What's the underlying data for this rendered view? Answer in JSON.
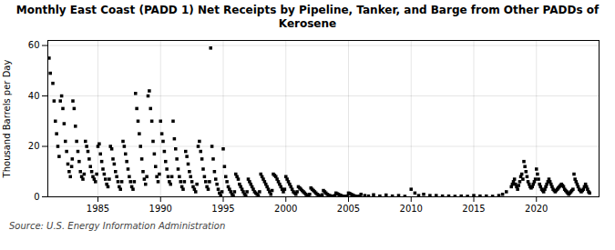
{
  "chart_data": {
    "type": "scatter",
    "title": "Monthly East Coast (PADD 1) Net Receipts by Pipeline, Tanker, and Barge from Other PADDs of\nKerosene",
    "ylabel": "Thousand Barrels per Day",
    "source": "Source: U.S. Energy Information Administration",
    "marker": "square",
    "grid": true,
    "xlim": [
      1981.0,
      2025.0
    ],
    "ylim": [
      0,
      62
    ],
    "xticks": [
      1985,
      1990,
      1995,
      2000,
      2005,
      2010,
      2015,
      2020
    ],
    "yticks": [
      0,
      20,
      40,
      60
    ],
    "x": [
      1981.1,
      1981.2,
      1981.4,
      1981.5,
      1981.6,
      1981.7,
      1981.8,
      1981.9,
      1982.0,
      1982.1,
      1982.2,
      1982.3,
      1982.4,
      1982.5,
      1982.6,
      1982.7,
      1982.8,
      1982.9,
      1982.95,
      1983.0,
      1983.1,
      1983.2,
      1983.3,
      1983.4,
      1983.5,
      1983.6,
      1983.7,
      1983.8,
      1983.9,
      1984.0,
      1984.1,
      1984.2,
      1984.3,
      1984.4,
      1984.5,
      1984.6,
      1984.7,
      1984.8,
      1984.9,
      1985.0,
      1985.1,
      1985.2,
      1985.3,
      1985.4,
      1985.5,
      1985.6,
      1985.7,
      1985.8,
      1985.9,
      1986.0,
      1986.1,
      1986.2,
      1986.3,
      1986.4,
      1986.5,
      1986.6,
      1986.7,
      1986.8,
      1986.9,
      1987.0,
      1987.1,
      1987.2,
      1987.3,
      1987.4,
      1987.5,
      1987.6,
      1987.7,
      1987.8,
      1987.9,
      1988.0,
      1988.1,
      1988.2,
      1988.3,
      1988.4,
      1988.5,
      1988.6,
      1988.7,
      1988.8,
      1988.9,
      1989.0,
      1989.1,
      1989.2,
      1989.3,
      1989.4,
      1989.5,
      1989.6,
      1989.7,
      1989.8,
      1989.9,
      1990.0,
      1990.1,
      1990.2,
      1990.3,
      1990.4,
      1990.5,
      1990.6,
      1990.7,
      1990.8,
      1990.9,
      1991.0,
      1991.1,
      1991.2,
      1991.3,
      1991.4,
      1991.5,
      1991.6,
      1991.7,
      1991.8,
      1991.9,
      1992.0,
      1992.1,
      1992.2,
      1992.3,
      1992.4,
      1992.5,
      1992.6,
      1992.7,
      1992.8,
      1992.9,
      1993.0,
      1993.1,
      1993.2,
      1993.3,
      1993.4,
      1993.5,
      1993.6,
      1993.7,
      1993.8,
      1993.9,
      1994.0,
      1994.1,
      1994.2,
      1994.3,
      1994.4,
      1994.5,
      1994.6,
      1994.7,
      1994.8,
      1994.9,
      1995.0,
      1995.1,
      1995.2,
      1995.3,
      1995.4,
      1995.5,
      1995.6,
      1995.7,
      1995.8,
      1995.9,
      1996.0,
      1996.1,
      1996.2,
      1996.3,
      1996.4,
      1996.5,
      1996.6,
      1996.7,
      1996.8,
      1996.9,
      1997.0,
      1997.1,
      1997.2,
      1997.3,
      1997.4,
      1997.5,
      1997.6,
      1997.7,
      1997.8,
      1997.9,
      1998.0,
      1998.1,
      1998.2,
      1998.3,
      1998.4,
      1998.5,
      1998.6,
      1998.7,
      1998.8,
      1998.9,
      1999.0,
      1999.1,
      1999.2,
      1999.3,
      1999.4,
      1999.5,
      1999.6,
      1999.7,
      1999.8,
      1999.9,
      2000.0,
      2000.1,
      2000.2,
      2000.3,
      2000.4,
      2000.5,
      2000.6,
      2000.7,
      2000.8,
      2000.9,
      2001.0,
      2001.1,
      2001.2,
      2001.3,
      2001.4,
      2001.5,
      2001.6,
      2001.7,
      2001.8,
      2001.9,
      2002.0,
      2002.1,
      2002.2,
      2002.3,
      2002.4,
      2002.5,
      2002.6,
      2002.7,
      2002.8,
      2002.9,
      2003.0,
      2003.1,
      2003.2,
      2003.3,
      2003.4,
      2003.5,
      2003.6,
      2003.7,
      2003.8,
      2003.9,
      2004.0,
      2004.1,
      2004.2,
      2004.3,
      2004.4,
      2004.5,
      2004.6,
      2004.7,
      2004.8,
      2004.9,
      2005.0,
      2005.1,
      2005.2,
      2005.3,
      2005.4,
      2005.5,
      2005.6,
      2005.7,
      2005.8,
      2005.9,
      2006.0,
      2006.3,
      2006.6,
      2007.0,
      2007.5,
      2008.0,
      2008.5,
      2009.0,
      2009.5,
      2010.0,
      2010.3,
      2010.6,
      2011.0,
      2011.5,
      2012.0,
      2012.5,
      2013.0,
      2013.5,
      2014.0,
      2014.5,
      2015.0,
      2015.5,
      2016.0,
      2016.5,
      2017.0,
      2017.3,
      2017.6,
      2018.0,
      2018.083,
      2018.166,
      2018.25,
      2018.33,
      2018.42,
      2018.5,
      2018.58,
      2018.67,
      2018.75,
      2018.83,
      2018.92,
      2019.0,
      2019.083,
      2019.166,
      2019.25,
      2019.33,
      2019.42,
      2019.5,
      2019.58,
      2019.67,
      2019.75,
      2019.83,
      2019.92,
      2020.0,
      2020.083,
      2020.166,
      2020.25,
      2020.33,
      2020.42,
      2020.5,
      2020.58,
      2020.67,
      2020.75,
      2020.83,
      2020.92,
      2021.0,
      2021.083,
      2021.166,
      2021.25,
      2021.33,
      2021.42,
      2021.5,
      2021.58,
      2021.67,
      2021.75,
      2021.83,
      2021.92,
      2022.0,
      2022.083,
      2022.166,
      2022.25,
      2022.33,
      2022.42,
      2022.5,
      2022.58,
      2022.67,
      2022.75,
      2022.83,
      2022.92,
      2023.0,
      2023.083,
      2023.166,
      2023.25,
      2023.33,
      2023.42,
      2023.5,
      2023.58,
      2023.67,
      2023.75,
      2023.83,
      2023.92,
      2024.0,
      2024.083,
      2024.166,
      2024.25
    ],
    "values": [
      55.0,
      49.0,
      45.0,
      38.0,
      30.0,
      25.0,
      20.0,
      16.0,
      38.0,
      40.0,
      35.0,
      29.0,
      22.0,
      18.0,
      13.0,
      10.0,
      8.0,
      12.0,
      15.0,
      38.0,
      35.0,
      28.0,
      22.0,
      18.0,
      14.0,
      10.0,
      8.0,
      7.0,
      9.0,
      22.0,
      20.0,
      18.0,
      15.0,
      12.0,
      10.0,
      8.0,
      7.0,
      6.0,
      9.0,
      20.0,
      21.0,
      17.0,
      14.0,
      11.0,
      9.0,
      7.0,
      5.0,
      4.0,
      7.0,
      20.0,
      19.0,
      15.0,
      13.0,
      10.0,
      8.0,
      6.0,
      4.0,
      3.0,
      6.0,
      22.0,
      20.0,
      17.0,
      14.0,
      11.0,
      8.0,
      6.0,
      4.0,
      3.0,
      6.0,
      41.0,
      35.0,
      30.0,
      25.0,
      20.0,
      15.0,
      10.0,
      7.0,
      5.0,
      8.0,
      40.0,
      42.0,
      35.0,
      30.0,
      22.0,
      17.0,
      12.0,
      8.0,
      6.0,
      9.0,
      30.0,
      25.0,
      22.0,
      18.0,
      14.0,
      11.0,
      8.0,
      6.0,
      5.0,
      8.0,
      30.0,
      23.0,
      19.0,
      15.0,
      11.0,
      8.0,
      6.0,
      4.0,
      3.0,
      6.0,
      18.0,
      16.0,
      13.0,
      10.0,
      8.0,
      6.0,
      4.0,
      3.0,
      2.0,
      5.0,
      20.0,
      22.0,
      18.0,
      15.0,
      11.0,
      8.0,
      6.0,
      4.0,
      3.0,
      6.0,
      59.0,
      20.0,
      15.0,
      10.0,
      7.0,
      5.0,
      3.0,
      1.5,
      0.5,
      2.0,
      19.0,
      12.0,
      8.0,
      6.0,
      4.0,
      3.0,
      2.0,
      1.0,
      0.5,
      2.0,
      9.0,
      8.0,
      7.0,
      5.0,
      4.0,
      3.0,
      2.0,
      1.0,
      0.5,
      2.0,
      7.0,
      6.0,
      5.0,
      4.0,
      3.0,
      2.0,
      1.5,
      1.0,
      0.5,
      2.0,
      9.0,
      8.0,
      7.0,
      6.0,
      5.0,
      4.0,
      3.0,
      2.0,
      1.0,
      2.5,
      9.0,
      8.5,
      8.0,
      7.0,
      6.0,
      5.0,
      4.0,
      3.0,
      2.0,
      3.0,
      8.0,
      7.0,
      6.0,
      5.0,
      4.0,
      3.0,
      2.0,
      1.5,
      1.0,
      2.0,
      4.0,
      3.5,
      3.0,
      2.5,
      2.0,
      1.5,
      1.0,
      0.5,
      0.3,
      1.0,
      3.5,
      3.0,
      2.5,
      2.0,
      1.5,
      1.0,
      0.7,
      0.4,
      0.2,
      0.8,
      2.5,
      2.0,
      1.5,
      1.0,
      0.7,
      0.5,
      0.3,
      0.2,
      0.1,
      0.5,
      1.5,
      1.2,
      1.0,
      0.7,
      0.5,
      0.3,
      0.2,
      0.1,
      0.05,
      0.3,
      1.5,
      1.3,
      1.0,
      0.8,
      0.5,
      0.3,
      0.2,
      0.1,
      0.05,
      0.3,
      1.0,
      0.5,
      0.3,
      0.8,
      0.3,
      0.7,
      0.3,
      0.5,
      0.2,
      3.0,
      1.5,
      0.5,
      1.0,
      0.5,
      0.5,
      0.3,
      0.3,
      0.2,
      0.3,
      0.2,
      0.5,
      0.3,
      0.3,
      0.2,
      0.5,
      1.0,
      2.0,
      4.0,
      5.0,
      6.0,
      7.0,
      5.0,
      4.0,
      3.0,
      4.5,
      6.0,
      8.0,
      9.0,
      7.0,
      14.0,
      12.0,
      10.0,
      8.0,
      6.0,
      5.0,
      4.0,
      3.5,
      4.0,
      5.0,
      6.0,
      7.0,
      11.0,
      9.0,
      7.0,
      5.0,
      4.0,
      3.0,
      2.5,
      2.0,
      3.0,
      4.0,
      5.0,
      6.0,
      7.0,
      6.0,
      5.0,
      4.0,
      3.0,
      2.5,
      2.0,
      2.5,
      3.0,
      3.5,
      4.0,
      4.5,
      5.0,
      4.5,
      4.0,
      3.0,
      2.5,
      2.0,
      1.5,
      1.0,
      1.5,
      2.0,
      2.5,
      3.0,
      9.0,
      7.0,
      6.0,
      5.0,
      4.0,
      3.0,
      2.5,
      2.0,
      2.5,
      3.0,
      4.0,
      5.0,
      4.0,
      3.0,
      2.0,
      1.5
    ]
  }
}
